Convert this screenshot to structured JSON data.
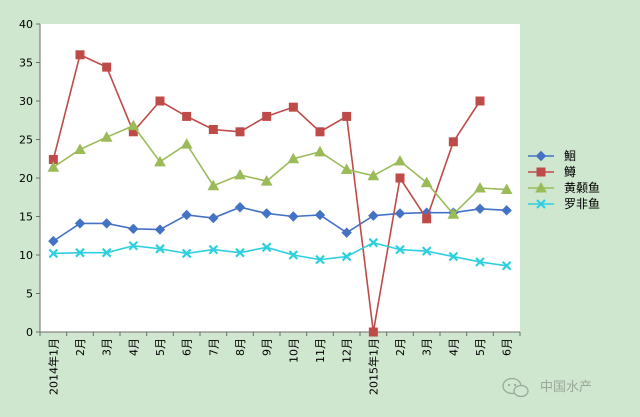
{
  "chart_data": {
    "type": "line",
    "categories": [
      "2014年1月",
      "2月",
      "3月",
      "4月",
      "5月",
      "6月",
      "7月",
      "8月",
      "9月",
      "10月",
      "11月",
      "12月",
      "2015年1月",
      "2月",
      "3月",
      "4月",
      "5月",
      "6月"
    ],
    "ylim": [
      0,
      40
    ],
    "yticks": [
      "0",
      "5",
      "10",
      "15",
      "20",
      "25",
      "30",
      "35",
      "40"
    ],
    "grid": false,
    "legend_position": "right",
    "series": [
      {
        "name": "鮰",
        "color": "#4472c4",
        "marker": "diamond",
        "values": [
          11.8,
          14.1,
          14.1,
          13.4,
          13.3,
          15.2,
          14.8,
          16.2,
          15.4,
          15.0,
          15.2,
          12.9,
          15.1,
          15.4,
          15.5,
          15.5,
          16.0,
          15.8
        ]
      },
      {
        "name": "鳟",
        "color": "#be4b48",
        "marker": "square",
        "values": [
          22.4,
          36.0,
          34.4,
          26.0,
          30.0,
          28.0,
          26.3,
          26.0,
          28.0,
          29.2,
          26.0,
          28.0,
          0.0,
          20.0,
          14.7,
          24.7,
          30.0,
          null
        ]
      },
      {
        "name": "黄颡鱼",
        "color": "#9bbb59",
        "marker": "triangle",
        "values": [
          21.4,
          23.7,
          25.3,
          26.8,
          22.1,
          24.4,
          19.0,
          20.4,
          19.6,
          22.5,
          23.4,
          21.1,
          20.3,
          22.2,
          19.4,
          15.3,
          18.7,
          18.5
        ]
      },
      {
        "name": "罗非鱼",
        "color": "#2fcfe0",
        "marker": "x",
        "values": [
          10.2,
          10.3,
          10.3,
          11.2,
          10.8,
          10.2,
          10.7,
          10.3,
          11.0,
          10.0,
          9.4,
          9.8,
          11.6,
          10.7,
          10.5,
          9.8,
          9.1,
          8.6
        ]
      }
    ]
  },
  "watermark": {
    "icon": "wechat-icon",
    "text": "中国水产"
  },
  "colors": {
    "page_background": "#cfe6cf",
    "plot_background": "#ffffff",
    "axis": "#6e6e6e"
  }
}
